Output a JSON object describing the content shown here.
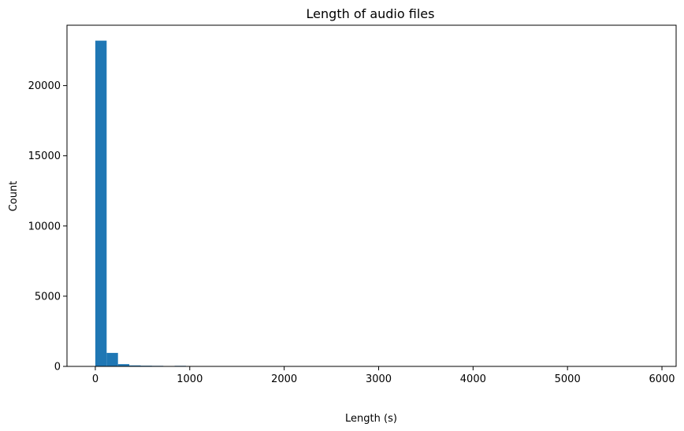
{
  "chart_data": {
    "type": "bar",
    "title": "Length of audio files",
    "xlabel": "Length (s)",
    "ylabel": "Count",
    "xlim": [
      -300,
      6150
    ],
    "ylim": [
      0,
      24300
    ],
    "xticks": [
      0,
      1000,
      2000,
      3000,
      4000,
      5000,
      6000
    ],
    "yticks": [
      0,
      5000,
      10000,
      15000,
      20000
    ],
    "bar_color": "#1f77b4",
    "bin_width": 120,
    "bin_start": 0,
    "values": [
      23200,
      960,
      160,
      70,
      50,
      40,
      10,
      40,
      25,
      10,
      5,
      5,
      3,
      3,
      3,
      2,
      2,
      2,
      2,
      2,
      2,
      2,
      2,
      2,
      1,
      1,
      1,
      1,
      1,
      1,
      1,
      1,
      1,
      1,
      1,
      1,
      1,
      1,
      1,
      1,
      1,
      1,
      1,
      1,
      1,
      1,
      1,
      1,
      1,
      1
    ],
    "grid": false,
    "legend": "none"
  }
}
